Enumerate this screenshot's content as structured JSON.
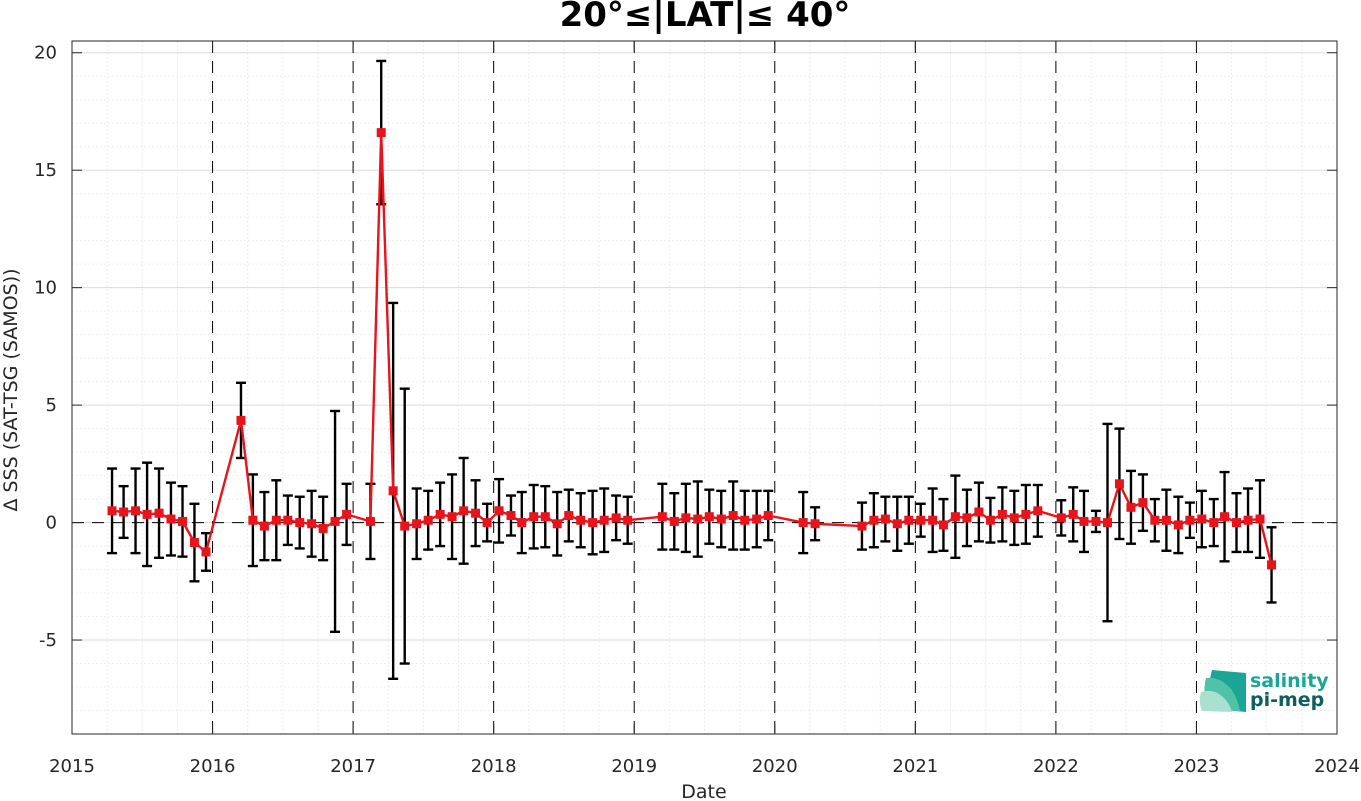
{
  "chart_data": {
    "type": "line",
    "title": "20°≤|LAT|≤ 40°",
    "xlabel": "Date",
    "ylabel": "Δ SSS (SAT-TSG (SAMOS))",
    "xlim": [
      "2015-01-01",
      "2024-01-01"
    ],
    "ylim": [
      -9,
      20.5
    ],
    "x_ticks": [
      "2015",
      "2016",
      "2017",
      "2018",
      "2019",
      "2020",
      "2021",
      "2022",
      "2023",
      "2024"
    ],
    "y_ticks": [
      {
        "value": -5,
        "label": "-5"
      },
      {
        "value": 0,
        "label": "0"
      },
      {
        "value": 5,
        "label": "5"
      },
      {
        "value": 10,
        "label": "10"
      },
      {
        "value": 15,
        "label": "15"
      },
      {
        "value": 20,
        "label": "20"
      }
    ],
    "grid": true,
    "year_boundaries": [
      "2016",
      "2017",
      "2018",
      "2019",
      "2020",
      "2021",
      "2022",
      "2023"
    ],
    "series": [
      {
        "color": "#e8141c",
        "marker": "square",
        "points": [
          {
            "x": "2015-04-15",
            "y": 0.5,
            "err": 1.8
          },
          {
            "x": "2015-05-15",
            "y": 0.45,
            "err": 1.1
          },
          {
            "x": "2015-06-15",
            "y": 0.5,
            "err": 1.8
          },
          {
            "x": "2015-07-15",
            "y": 0.35,
            "err": 2.2
          },
          {
            "x": "2015-08-15",
            "y": 0.4,
            "err": 1.9
          },
          {
            "x": "2015-09-15",
            "y": 0.15,
            "err": 1.55
          },
          {
            "x": "2015-10-15",
            "y": 0.05,
            "err": 1.5
          },
          {
            "x": "2015-11-15",
            "y": -0.85,
            "err": 1.65
          },
          {
            "x": "2015-12-15",
            "y": -1.25,
            "err": 0.8
          },
          {
            "x": "2016-03-15",
            "y": 4.35,
            "err": 1.6
          },
          {
            "x": "2016-04-15",
            "y": 0.1,
            "err": 1.95
          },
          {
            "x": "2016-05-15",
            "y": -0.15,
            "err": 1.45
          },
          {
            "x": "2016-06-15",
            "y": 0.1,
            "err": 1.7
          },
          {
            "x": "2016-07-15",
            "y": 0.1,
            "err": 1.05
          },
          {
            "x": "2016-08-15",
            "y": 0.0,
            "err": 1.1
          },
          {
            "x": "2016-09-15",
            "y": -0.05,
            "err": 1.4
          },
          {
            "x": "2016-10-15",
            "y": -0.25,
            "err": 1.35
          },
          {
            "x": "2016-11-15",
            "y": 0.05,
            "err": 4.7
          },
          {
            "x": "2016-12-15",
            "y": 0.35,
            "err": 1.3
          },
          {
            "x": "2017-02-15",
            "y": 0.05,
            "err": 1.6
          },
          {
            "x": "2017-03-15",
            "y": 16.6,
            "err": 3.05
          },
          {
            "x": "2017-04-15",
            "y": 1.35,
            "err": 8.0
          },
          {
            "x": "2017-05-15",
            "y": -0.15,
            "err": 5.85
          },
          {
            "x": "2017-06-15",
            "y": -0.05,
            "err": 1.5
          },
          {
            "x": "2017-07-15",
            "y": 0.1,
            "err": 1.25
          },
          {
            "x": "2017-08-15",
            "y": 0.35,
            "err": 1.35
          },
          {
            "x": "2017-09-15",
            "y": 0.25,
            "err": 1.8
          },
          {
            "x": "2017-10-15",
            "y": 0.5,
            "err": 2.25
          },
          {
            "x": "2017-11-15",
            "y": 0.4,
            "err": 1.4
          },
          {
            "x": "2017-12-15",
            "y": 0.0,
            "err": 0.8
          },
          {
            "x": "2018-01-15",
            "y": 0.5,
            "err": 1.35
          },
          {
            "x": "2018-02-15",
            "y": 0.3,
            "err": 0.85
          },
          {
            "x": "2018-03-15",
            "y": 0.0,
            "err": 1.3
          },
          {
            "x": "2018-04-15",
            "y": 0.25,
            "err": 1.35
          },
          {
            "x": "2018-05-15",
            "y": 0.25,
            "err": 1.3
          },
          {
            "x": "2018-06-15",
            "y": -0.05,
            "err": 1.35
          },
          {
            "x": "2018-07-15",
            "y": 0.3,
            "err": 1.1
          },
          {
            "x": "2018-08-15",
            "y": 0.1,
            "err": 1.15
          },
          {
            "x": "2018-09-15",
            "y": 0.0,
            "err": 1.35
          },
          {
            "x": "2018-10-15",
            "y": 0.1,
            "err": 1.35
          },
          {
            "x": "2018-11-15",
            "y": 0.2,
            "err": 0.95
          },
          {
            "x": "2018-12-15",
            "y": 0.1,
            "err": 1.0
          },
          {
            "x": "2019-03-15",
            "y": 0.25,
            "err": 1.4
          },
          {
            "x": "2019-04-15",
            "y": 0.05,
            "err": 1.2
          },
          {
            "x": "2019-05-15",
            "y": 0.2,
            "err": 1.45
          },
          {
            "x": "2019-06-15",
            "y": 0.15,
            "err": 1.6
          },
          {
            "x": "2019-07-15",
            "y": 0.25,
            "err": 1.15
          },
          {
            "x": "2019-08-15",
            "y": 0.15,
            "err": 1.2
          },
          {
            "x": "2019-09-15",
            "y": 0.3,
            "err": 1.45
          },
          {
            "x": "2019-10-15",
            "y": 0.1,
            "err": 1.25
          },
          {
            "x": "2019-11-15",
            "y": 0.15,
            "err": 1.2
          },
          {
            "x": "2019-12-15",
            "y": 0.3,
            "err": 1.05
          },
          {
            "x": "2020-03-15",
            "y": 0.0,
            "err": 1.3
          },
          {
            "x": "2020-04-15",
            "y": -0.05,
            "err": 0.7
          },
          {
            "x": "2020-08-15",
            "y": -0.15,
            "err": 1.0
          },
          {
            "x": "2020-09-15",
            "y": 0.1,
            "err": 1.15
          },
          {
            "x": "2020-10-15",
            "y": 0.15,
            "err": 0.95
          },
          {
            "x": "2020-11-15",
            "y": -0.05,
            "err": 1.15
          },
          {
            "x": "2020-12-15",
            "y": 0.1,
            "err": 1.0
          },
          {
            "x": "2021-01-15",
            "y": 0.1,
            "err": 0.7
          },
          {
            "x": "2021-02-15",
            "y": 0.1,
            "err": 1.35
          },
          {
            "x": "2021-03-15",
            "y": -0.1,
            "err": 1.1
          },
          {
            "x": "2021-04-15",
            "y": 0.25,
            "err": 1.75
          },
          {
            "x": "2021-05-15",
            "y": 0.2,
            "err": 1.2
          },
          {
            "x": "2021-06-15",
            "y": 0.45,
            "err": 1.25
          },
          {
            "x": "2021-07-15",
            "y": 0.1,
            "err": 0.95
          },
          {
            "x": "2021-08-15",
            "y": 0.35,
            "err": 1.15
          },
          {
            "x": "2021-09-15",
            "y": 0.2,
            "err": 1.15
          },
          {
            "x": "2021-10-15",
            "y": 0.35,
            "err": 1.25
          },
          {
            "x": "2021-11-15",
            "y": 0.5,
            "err": 1.1
          },
          {
            "x": "2022-01-15",
            "y": 0.2,
            "err": 0.75
          },
          {
            "x": "2022-02-15",
            "y": 0.35,
            "err": 1.15
          },
          {
            "x": "2022-03-15",
            "y": 0.05,
            "err": 1.3
          },
          {
            "x": "2022-04-15",
            "y": 0.05,
            "err": 0.45
          },
          {
            "x": "2022-05-15",
            "y": 0.0,
            "err": 4.2
          },
          {
            "x": "2022-06-15",
            "y": 1.65,
            "err": 2.35
          },
          {
            "x": "2022-07-15",
            "y": 0.65,
            "err": 1.55
          },
          {
            "x": "2022-08-15",
            "y": 0.85,
            "err": 1.2
          },
          {
            "x": "2022-09-15",
            "y": 0.1,
            "err": 0.9
          },
          {
            "x": "2022-10-15",
            "y": 0.1,
            "err": 1.3
          },
          {
            "x": "2022-11-15",
            "y": -0.1,
            "err": 1.2
          },
          {
            "x": "2022-12-15",
            "y": 0.1,
            "err": 0.75
          },
          {
            "x": "2023-01-15",
            "y": 0.15,
            "err": 1.2
          },
          {
            "x": "2023-02-15",
            "y": 0.0,
            "err": 1.0
          },
          {
            "x": "2023-03-15",
            "y": 0.25,
            "err": 1.9
          },
          {
            "x": "2023-04-15",
            "y": 0.0,
            "err": 1.25
          },
          {
            "x": "2023-05-15",
            "y": 0.1,
            "err": 1.35
          },
          {
            "x": "2023-06-15",
            "y": 0.15,
            "err": 1.65
          },
          {
            "x": "2023-07-15",
            "y": -1.8,
            "err": 1.6
          }
        ]
      }
    ]
  },
  "logo": {
    "line1": "salinity",
    "line2": "pi-mep",
    "color1": "#1aa595",
    "color2": "#0e5f5f"
  }
}
